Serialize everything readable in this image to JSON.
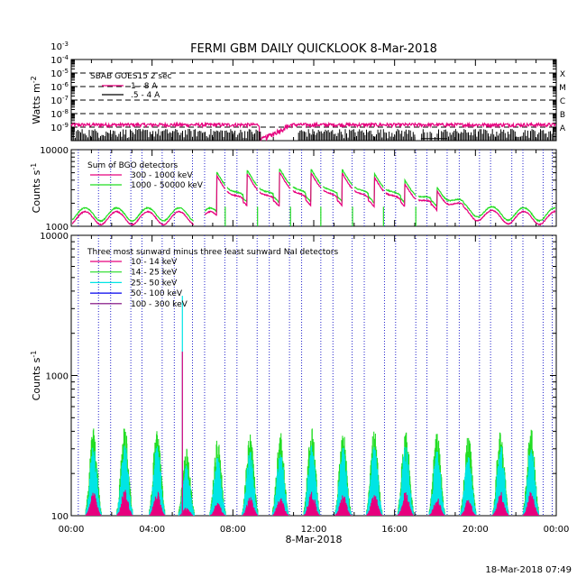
{
  "title": "FERMI GBM DAILY QUICKLOOK    8-Mar-2018",
  "footer": "18-Mar-2018 07:49",
  "chart_data": [
    {
      "type": "line",
      "panel": "goes",
      "ylabel": "Watts m",
      "ylabel_sup": "-2",
      "yscale": "log",
      "ylim": [
        1e-09,
        0.001
      ],
      "yticks": [
        {
          "base": "10",
          "exp": "-3"
        },
        {
          "base": "10",
          "exp": "-4"
        },
        {
          "base": "10",
          "exp": "-5"
        },
        {
          "base": "10",
          "exp": "-6"
        },
        {
          "base": "10",
          "exp": "-7"
        },
        {
          "base": "10",
          "exp": "-8"
        },
        {
          "base": "10",
          "exp": "-9"
        }
      ],
      "flare_classes": [
        {
          "label": "X",
          "level": 0.0001
        },
        {
          "label": "M",
          "level": 1e-05
        },
        {
          "label": "C",
          "level": 1e-06
        },
        {
          "label": "B",
          "level": 1e-07
        },
        {
          "label": "A",
          "level": 1e-08
        }
      ],
      "legend_title": "SBAB GOES15 2 sec",
      "series": [
        {
          "name": "1 - 8 A",
          "color": "#e6007e",
          "level": 1.5e-08
        },
        {
          "name": ".5 - 4 A",
          "color": "#000000",
          "level": 1.5e-09
        }
      ]
    },
    {
      "type": "line",
      "panel": "bgo",
      "ylabel": "Counts s",
      "ylabel_sup": "-1",
      "yscale": "log",
      "ylim": [
        1000,
        10000
      ],
      "yticks": [
        {
          "base": "10000",
          "exp": ""
        },
        {
          "base": "1000",
          "exp": ""
        }
      ],
      "legend_title": "Sum of BGO detectors",
      "series": [
        {
          "name": "300 - 1000 keV",
          "color": "#e6007e"
        },
        {
          "name": "1000 - 50000 keV",
          "color": "#22dd22"
        }
      ]
    },
    {
      "type": "line",
      "panel": "nai",
      "ylabel": "Counts s",
      "ylabel_sup": "-1",
      "yscale": "log",
      "ylim": [
        100,
        10000
      ],
      "yticks": [
        {
          "base": "10000",
          "exp": ""
        },
        {
          "base": "1000",
          "exp": ""
        },
        {
          "base": "100",
          "exp": ""
        }
      ],
      "legend_title": "Three most sunward minus three least sunward NaI detectors",
      "series": [
        {
          "name": "10 - 14 keV",
          "color": "#e6007e"
        },
        {
          "name": "14 - 25 keV",
          "color": "#22dd22"
        },
        {
          "name": "25 - 50 keV",
          "color": "#00e5e5"
        },
        {
          "name": "50 - 100 keV",
          "color": "#0000ee"
        },
        {
          "name": "100 - 300 keV",
          "color": "#7a007a"
        }
      ],
      "orbit_peaks": [
        {
          "t": 1.1,
          "v": 420
        },
        {
          "t": 2.65,
          "v": 440
        },
        {
          "t": 4.25,
          "v": 430
        },
        {
          "t": 5.7,
          "v": 330
        },
        {
          "t": 7.25,
          "v": 360
        },
        {
          "t": 8.85,
          "v": 390
        },
        {
          "t": 10.35,
          "v": 400
        },
        {
          "t": 11.9,
          "v": 430
        },
        {
          "t": 13.45,
          "v": 410
        },
        {
          "t": 15.0,
          "v": 420
        },
        {
          "t": 16.55,
          "v": 430
        },
        {
          "t": 18.1,
          "v": 390
        },
        {
          "t": 19.65,
          "v": 380
        },
        {
          "t": 21.25,
          "v": 430
        },
        {
          "t": 22.75,
          "v": 430
        }
      ],
      "spike": {
        "t": 5.5,
        "v": 3700
      }
    }
  ],
  "xaxis": {
    "label": "8-Mar-2018",
    "range_hours": [
      0,
      24
    ],
    "ticks": [
      "00:00",
      "04:00",
      "08:00",
      "12:00",
      "16:00",
      "20:00",
      "00:00"
    ],
    "saa_dotted_hours": [
      0.35,
      1.35,
      1.95,
      2.95,
      3.5,
      4.5,
      5.1,
      6.0,
      6.6,
      7.6,
      8.2,
      9.2,
      9.8,
      10.8,
      11.4,
      12.35,
      12.95,
      13.9,
      14.5,
      15.5,
      16.05,
      17.05,
      17.6,
      18.6,
      19.2,
      20.2,
      20.75,
      21.8,
      22.35,
      23.35,
      23.8
    ]
  }
}
